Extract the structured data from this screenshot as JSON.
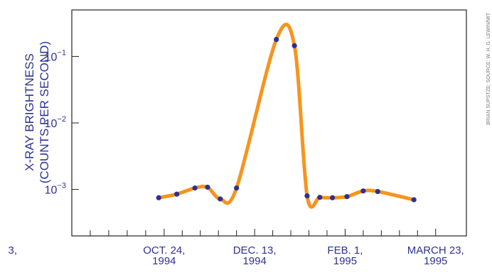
{
  "chart_data": {
    "type": "line",
    "ylabel_line1": "X-RAY BRIGHTNESS",
    "ylabel_line2": "(COUNTS PER SECOND)",
    "y_scale": "log",
    "ylim": [
      0.0002,
      0.5
    ],
    "y_ticks": [
      {
        "base": "10",
        "exp": "−1"
      },
      {
        "base": "10",
        "exp": "−2"
      },
      {
        "base": "10",
        "exp": "−3"
      }
    ],
    "x_tick_labels": [
      {
        "line1": "3,",
        "line2": ""
      },
      {
        "line1": "OCT. 24,",
        "line2": "1994"
      },
      {
        "line1": "DEC. 13,",
        "line2": "1994"
      },
      {
        "line1": "FEB. 1,",
        "line2": "1995"
      },
      {
        "line1": "MARCH 23,",
        "line2": "1995"
      }
    ],
    "xlim": [
      "1994-09-03",
      "1995-04-09"
    ],
    "series": [
      {
        "color": "#f7941d",
        "marker_color": "#2e3192",
        "x": [
          "1994-10-21",
          "1994-10-31",
          "1994-11-10",
          "1994-11-17",
          "1994-11-24",
          "1994-12-03",
          "1994-12-25",
          "1995-01-04",
          "1995-01-11",
          "1995-01-18",
          "1995-01-25",
          "1995-02-02",
          "1995-02-11",
          "1995-02-19",
          "1995-03-11"
        ],
        "values": [
          0.00075,
          0.00085,
          0.00105,
          0.00108,
          0.00072,
          0.00105,
          0.18,
          0.145,
          0.0008,
          0.00076,
          0.00075,
          0.00078,
          0.00095,
          0.00093,
          0.0007
        ]
      }
    ],
    "grid": false,
    "legend": "none"
  },
  "credit": "BRIAN SUPSTZE; SOURCE: W. H. G. LEWIN/MIT"
}
